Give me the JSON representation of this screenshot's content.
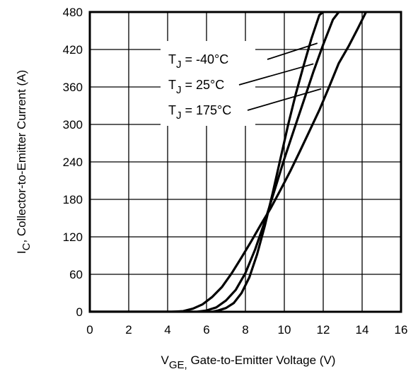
{
  "chart_data": {
    "type": "line",
    "title": "",
    "xlabel_main": "V",
    "xlabel_sub": "GE,",
    "xlabel_rest": " Gate-to-Emitter Voltage  (V)",
    "ylabel_main": "I",
    "ylabel_sub": "C",
    "ylabel_rest": ",  Collector-to-Emitter Current  (A)",
    "xlim": [
      0,
      16
    ],
    "ylim": [
      0,
      480
    ],
    "xticks": [
      "0",
      "2",
      "4",
      "6",
      "8",
      "10",
      "12",
      "14",
      "16"
    ],
    "yticks": [
      "0",
      "60",
      "120",
      "180",
      "240",
      "300",
      "360",
      "420",
      "480"
    ],
    "grid": true,
    "series": [
      {
        "name": "TJ = -40°C",
        "label_main": "T",
        "label_sub": "J",
        "label_rest": " = -40°C",
        "x": [
          6.3,
          6.6,
          7.0,
          7.4,
          7.8,
          8.2,
          8.6,
          9.0,
          9.4,
          9.8,
          10.2,
          10.6,
          11.0,
          11.4,
          11.8,
          12.0
        ],
        "y": [
          0,
          2,
          6,
          14,
          30,
          55,
          92,
          138,
          190,
          245,
          300,
          350,
          395,
          438,
          475,
          480
        ]
      },
      {
        "name": "TJ = 25°C",
        "label_main": "T",
        "label_sub": "J",
        "label_rest": " = 25°C",
        "x": [
          5.5,
          6.0,
          6.5,
          7.0,
          7.5,
          8.0,
          8.5,
          9.0,
          9.5,
          10.0,
          10.5,
          11.0,
          11.5,
          12.0,
          12.5,
          12.8
        ],
        "y": [
          0,
          2,
          7,
          18,
          35,
          62,
          100,
          145,
          195,
          245,
          292,
          338,
          385,
          428,
          468,
          480
        ]
      },
      {
        "name": "TJ = 175°C",
        "label_main": "T",
        "label_sub": "J",
        "label_rest": " = 175°C",
        "x": [
          4.2,
          4.8,
          5.3,
          5.8,
          6.3,
          6.8,
          7.3,
          7.8,
          8.3,
          8.8,
          9.3,
          9.8,
          10.3,
          10.8,
          11.3,
          11.8,
          12.3,
          12.8,
          13.3,
          13.8,
          14.2
        ],
        "y": [
          0,
          1,
          5,
          12,
          24,
          40,
          62,
          87,
          113,
          140,
          166,
          195,
          225,
          257,
          290,
          323,
          360,
          398,
          425,
          455,
          480
        ]
      }
    ],
    "annotations": [
      {
        "series": 0,
        "target_x": 11.7,
        "target_y": 430
      },
      {
        "series": 1,
        "target_x": 11.5,
        "target_y": 397
      },
      {
        "series": 2,
        "target_x": 11.9,
        "target_y": 357
      }
    ]
  }
}
